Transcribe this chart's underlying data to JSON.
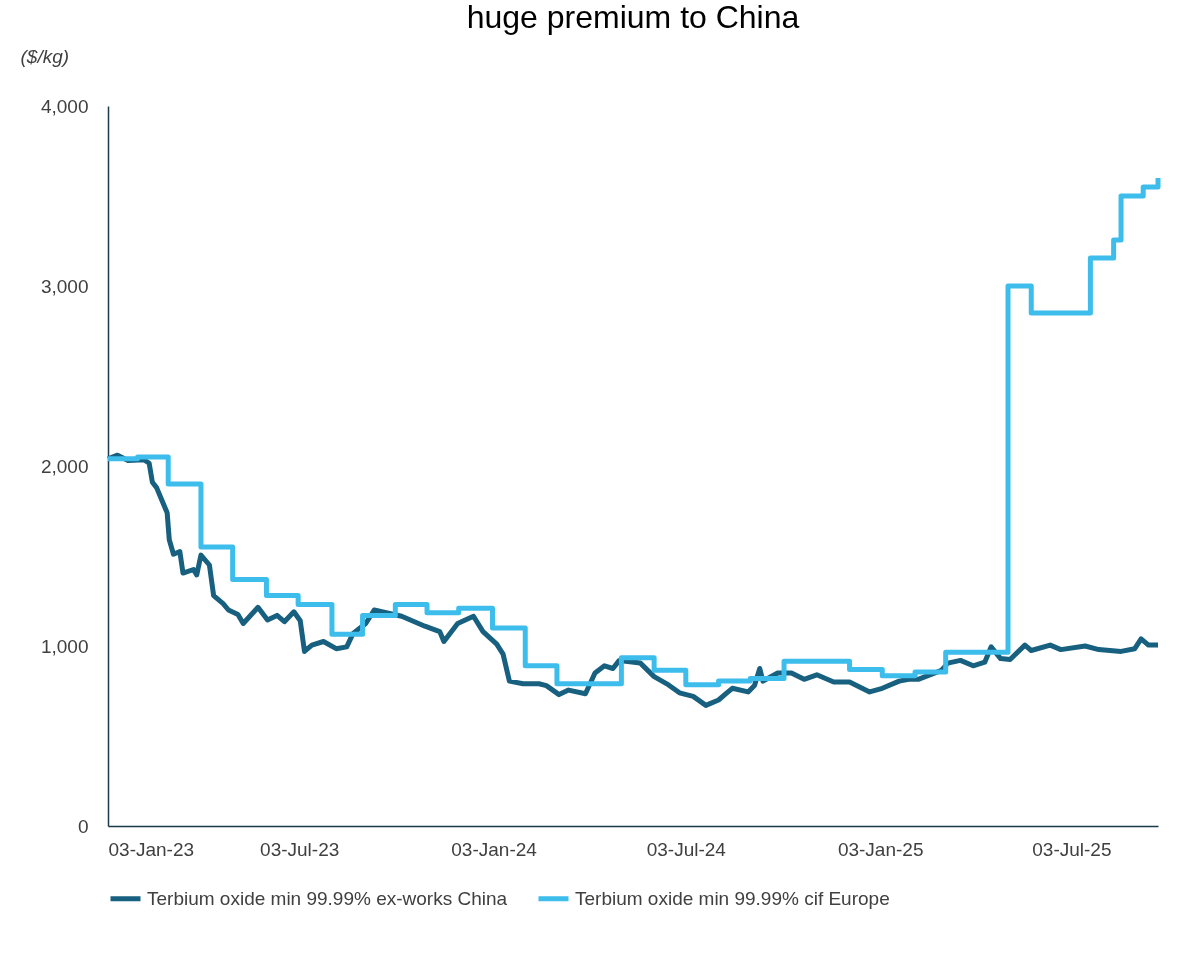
{
  "chart_data": {
    "type": "line",
    "title": "huge premium to China",
    "ylabel": "($/kg)",
    "xlim": [
      "2023-01-03",
      "2025-09-23"
    ],
    "xticks": [
      {
        "value": "2023-01-03",
        "label": "03-Jan-23"
      },
      {
        "value": "2023-07-03",
        "label": "03-Jul-23"
      },
      {
        "value": "2024-01-03",
        "label": "03-Jan-24"
      },
      {
        "value": "2024-07-03",
        "label": "03-Jul-24"
      },
      {
        "value": "2025-01-03",
        "label": "03-Jan-25"
      },
      {
        "value": "2025-07-03",
        "label": "03-Jul-25"
      }
    ],
    "ylim": [
      0,
      4000
    ],
    "yticks": [
      0,
      {
        "value": 1000,
        "label": "1,000"
      },
      {
        "value": 2000,
        "label": "2,000"
      },
      {
        "value": 3000,
        "label": "3,000"
      },
      {
        "value": 4000,
        "label": "4,000"
      }
    ],
    "grid": false,
    "legend": "bottom",
    "marker": "none",
    "line_style": "solid",
    "series": [
      {
        "name": "Terbium oxide min 99.99% ex-works China",
        "type": "line",
        "color": "#17607f",
        "x": [
          "2023-01-03",
          "2023-01-12",
          "2023-01-22",
          "2023-02-06",
          "2023-02-11",
          "2023-02-14",
          "2023-02-18",
          "2023-02-23",
          "2023-02-28",
          "2023-03-02",
          "2023-03-06",
          "2023-03-12",
          "2023-03-15",
          "2023-03-25",
          "2023-03-28",
          "2023-04-01",
          "2023-04-09",
          "2023-04-13",
          "2023-04-22",
          "2023-04-27",
          "2023-05-06",
          "2023-05-11",
          "2023-05-25",
          "2023-06-03",
          "2023-06-12",
          "2023-06-19",
          "2023-06-28",
          "2023-07-04",
          "2023-07-08",
          "2023-07-15",
          "2023-07-26",
          "2023-08-07",
          "2023-08-17",
          "2023-08-23",
          "2023-09-04",
          "2023-09-12",
          "2023-10-08",
          "2023-10-30",
          "2023-11-13",
          "2023-11-17",
          "2023-11-30",
          "2023-12-15",
          "2023-12-24",
          "2024-01-06",
          "2024-01-12",
          "2024-01-18",
          "2024-01-31",
          "2024-02-15",
          "2024-02-22",
          "2024-03-05",
          "2024-03-14",
          "2024-03-30",
          "2024-04-08",
          "2024-04-17",
          "2024-04-25",
          "2024-05-01",
          "2024-05-21",
          "2024-06-03",
          "2024-06-15",
          "2024-06-27",
          "2024-07-10",
          "2024-07-22",
          "2024-08-03",
          "2024-08-10",
          "2024-08-16",
          "2024-08-31",
          "2024-09-06",
          "2024-09-11",
          "2024-09-14",
          "2024-09-28",
          "2024-10-11",
          "2024-10-23",
          "2024-11-04",
          "2024-11-20",
          "2024-12-05",
          "2024-12-24",
          "2025-01-05",
          "2025-01-21",
          "2025-01-30",
          "2025-02-08",
          "2025-03-02",
          "2025-03-08",
          "2025-03-20",
          "2025-04-01",
          "2025-04-12",
          "2025-04-18",
          "2025-04-27",
          "2025-05-06",
          "2025-05-20",
          "2025-05-26",
          "2025-06-13",
          "2025-06-23",
          "2025-07-16",
          "2025-07-29",
          "2025-08-19",
          "2025-09-01",
          "2025-09-07",
          "2025-09-14",
          "2025-09-23"
        ],
        "values": [
          2040,
          2060,
          2030,
          2035,
          2015,
          1910,
          1880,
          1810,
          1740,
          1590,
          1510,
          1525,
          1405,
          1425,
          1395,
          1505,
          1450,
          1280,
          1235,
          1200,
          1175,
          1125,
          1215,
          1145,
          1170,
          1135,
          1190,
          1140,
          970,
          1005,
          1025,
          985,
          995,
          1070,
          1125,
          1200,
          1165,
          1110,
          1080,
          1025,
          1125,
          1165,
          1080,
          1010,
          955,
          805,
          790,
          790,
          780,
          730,
          755,
          735,
          850,
          890,
          875,
          920,
          905,
          830,
          790,
          740,
          720,
          670,
          700,
          735,
          765,
          745,
          780,
          875,
          805,
          850,
          850,
          815,
          840,
          800,
          800,
          745,
          765,
          805,
          815,
          815,
          865,
          905,
          920,
          890,
          910,
          995,
          930,
          925,
          1005,
          975,
          1005,
          980,
          1000,
          980,
          970,
          985,
          1040,
          1005,
          1005
        ]
      },
      {
        "name": "Terbium oxide min 99.99% cif Europe",
        "type": "step",
        "color": "#3dbdeb",
        "x": [
          "2023-01-03",
          "2023-01-31",
          "2023-03-01",
          "2023-04-01",
          "2023-05-01",
          "2023-06-02",
          "2023-07-02",
          "2023-08-03",
          "2023-09-01",
          "2023-10-02",
          "2023-11-01",
          "2023-12-01",
          "2024-01-02",
          "2024-02-02",
          "2024-03-03",
          "2024-05-03",
          "2024-06-03",
          "2024-07-03",
          "2024-08-03",
          "2024-09-02",
          "2024-10-04",
          "2024-12-05",
          "2025-01-05",
          "2025-02-05",
          "2025-03-06",
          "2025-05-04",
          "2025-05-26",
          "2025-07-21",
          "2025-08-12",
          "2025-08-19",
          "2025-09-09",
          "2025-09-23"
        ],
        "values": [
          2040,
          2050,
          1900,
          1550,
          1370,
          1280,
          1230,
          1065,
          1170,
          1230,
          1185,
          1210,
          1100,
          890,
          790,
          935,
          865,
          785,
          805,
          820,
          915,
          870,
          835,
          855,
          965,
          3000,
          2850,
          3155,
          3255,
          3500,
          3550,
          3600
        ]
      }
    ]
  }
}
